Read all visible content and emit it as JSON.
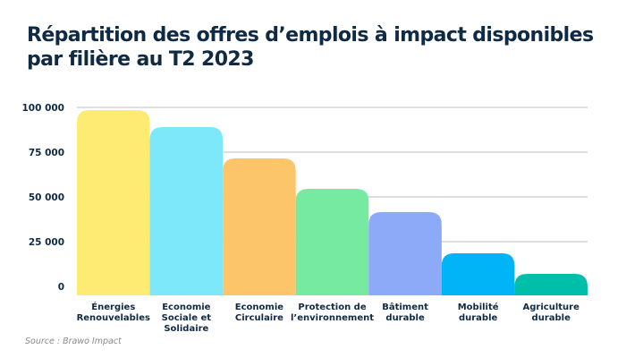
{
  "chart_data": {
    "type": "bar",
    "title": "Répartition des offres d’emplois à impact disponibles par filière au T2 2023",
    "categories": [
      [
        "Énergies",
        "Renouvelables"
      ],
      [
        "Economie",
        "Sociale et",
        "Solidaire"
      ],
      [
        "Economie",
        "Circulaire"
      ],
      [
        "Protection de",
        "l’environnement"
      ],
      [
        "Bâtiment",
        "durable"
      ],
      [
        "Mobilité",
        "durable"
      ],
      [
        "Agriculture",
        "durable"
      ]
    ],
    "values": [
      98500,
      89000,
      71500,
      54500,
      41500,
      18500,
      7000
    ],
    "colors": [
      "#fdeb74",
      "#7ee8fb",
      "#fdc56a",
      "#77eaa2",
      "#8daaf8",
      "#00b4f7",
      "#00bfa8"
    ],
    "ylim": [
      0,
      100000
    ],
    "yticks": [
      0,
      25000,
      50000,
      75000,
      100000
    ],
    "ytick_labels": [
      "0",
      "25 000",
      "50 000",
      "75 000",
      "100 000"
    ],
    "grid": true,
    "xlabel": "",
    "ylabel": ""
  },
  "source": "Source : Brawo Impact"
}
